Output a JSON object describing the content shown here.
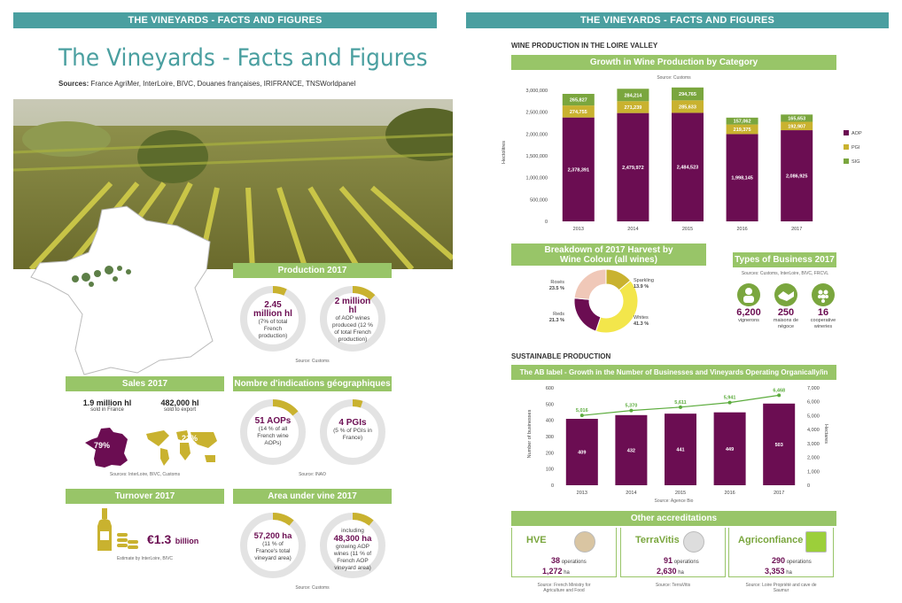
{
  "left": {
    "banner": "THE VINEYARDS - FACTS AND FIGURES",
    "title": "The Vineyards - Facts and Figures",
    "sources_label": "Sources:",
    "sources_text": "France AgriMer, InterLoire, BIVC, Douanes françaises, IRIFRANCE, TNSWorldpanel",
    "production": {
      "heading": "Production 2017",
      "ring1_big": "2.45 million hl",
      "ring1_small": "(7% of total French production)",
      "ring2_big": "2 million hl",
      "ring2_small": "of AOP wines produced (12 % of total French production)",
      "source": "Source: Customs"
    },
    "sales": {
      "heading": "Sales 2017",
      "france_value": "1.9 million hl",
      "france_text": "sold in France",
      "export_value": "482,000 hl",
      "export_text": "sold to export",
      "france_pct": "79%",
      "export_pct": "21%",
      "source": "Sources: InterLoire, BIVC, Customs"
    },
    "gi": {
      "heading": "Nombre d'indications géographiques",
      "ring1_big": "51 AOPs",
      "ring1_small": "(14 % of all French wine AOPs)",
      "ring2_big": "4 PGIs",
      "ring2_small": "(5 % of PGIs in France)",
      "source": "Source: INAO"
    },
    "turnover": {
      "heading": "Turnover 2017",
      "value": "€1.3",
      "unit": "billion",
      "source": "Estimate by InterLoire, BIVC"
    },
    "area": {
      "heading": "Area under vine 2017",
      "ring1_big": "57,200 ha",
      "ring1_small": "(11 % of France's total vineyard area)",
      "ring2_pre": "including",
      "ring2_big": "48,300 ha",
      "ring2_small": "growing AOP wines (11 % of French AOP vineyard area)",
      "source": "Source: Customs"
    }
  },
  "right": {
    "banner": "THE VINEYARDS - FACTS AND FIGURES",
    "section1": "WINE PRODUCTION IN THE LOIRE VALLEY",
    "growth_heading": "Growth in Wine Production by Category",
    "growth_source": "Source: Customs",
    "growth_ylabel": "Hectolitres",
    "colour_heading": "Breakdown of 2017 Harvest by Wine Colour (all wines)",
    "business_heading": "Types of Business 2017",
    "business_source": "Sources: Customs, InterLoire, BIVC, FRCVL",
    "business": [
      {
        "value": "6,200",
        "label": "vignerons"
      },
      {
        "value": "250",
        "label": "maisons de négoce"
      },
      {
        "value": "16",
        "label": "cooperative wineries"
      }
    ],
    "section2": "SUSTAINABLE PRODUCTION",
    "ab_heading": "The AB label - Growth in the Number of Businesses and Vineyards Operating Organically/in Conversion",
    "ab_ylabel_left": "Number of businesses",
    "ab_ylabel_right": "Hectares",
    "ab_source": "Source: Agence Bio",
    "other_heading": "Other accreditations",
    "accreditations": [
      {
        "name": "HVE",
        "ops": "38",
        "ops_label": "operations",
        "ha": "1,272",
        "ha_label": "ha",
        "source": "Source: French Ministry for Agriculture and Food"
      },
      {
        "name": "TerraVitis",
        "ops": "91",
        "ops_label": "operations",
        "ha": "2,630",
        "ha_label": "ha",
        "source": "Source: TerraVitis"
      },
      {
        "name": "Agriconfiance",
        "ops": "290",
        "ops_label": "operations",
        "ha": "3,353",
        "ha_label": "ha",
        "source": "Source: Loire Propriété and cave de Saumur"
      }
    ]
  },
  "colors": {
    "teal": "#4a9fa0",
    "green": "#98c568",
    "purple": "#6b0d52",
    "mustard": "#c9b22f",
    "rose": "#f0c8b8",
    "yellow": "#f3e64b",
    "ringgrey": "#e3e3e3"
  },
  "chart_data": [
    {
      "type": "bar",
      "title": "Growth in Wine Production by Category",
      "categories": [
        "2013",
        "2014",
        "2015",
        "2016",
        "2017"
      ],
      "series": [
        {
          "name": "AOP",
          "values": [
            2378391,
            2479972,
            2484523,
            1998145,
            2086925
          ],
          "labels": [
            "2,378,391",
            "2,479,972",
            "2,484,523",
            "1,998,145",
            "2,086,925"
          ]
        },
        {
          "name": "PGI",
          "values": [
            274755,
            271239,
            285633,
            219375,
            192907
          ],
          "labels": [
            "274,755",
            "271,239",
            "285,633",
            "219,375",
            "192,907"
          ]
        },
        {
          "name": "SIG",
          "values": [
            265827,
            284214,
            294765,
            157062,
            165653
          ],
          "labels": [
            "265,827",
            "284,214",
            "294,765",
            "157,062",
            "165,653"
          ]
        }
      ],
      "ylabel": "Hectolitres",
      "ylim": [
        0,
        3000000
      ],
      "yticks": [
        "0",
        "500,000",
        "1,000,000",
        "1,500,000",
        "2,000,000",
        "2,500,000",
        "3,000,000"
      ],
      "stacked": true,
      "legend": "right"
    },
    {
      "type": "pie",
      "title": "Breakdown of 2017 Harvest by Wine Colour (all wines)",
      "slices": [
        {
          "name": "Sparkling",
          "value": 13.9,
          "label": "13.9 %"
        },
        {
          "name": "Whites",
          "value": 41.3,
          "label": "41.3 %"
        },
        {
          "name": "Reds",
          "value": 21.3,
          "label": "21.3 %"
        },
        {
          "name": "Rosés",
          "value": 23.5,
          "label": "23.5 %"
        }
      ]
    },
    {
      "type": "bar",
      "title": "The AB label - Growth in the Number of Businesses and Vineyards Operating Organically/in Conversion",
      "categories": [
        "2013",
        "2014",
        "2015",
        "2016",
        "2017"
      ],
      "series": [
        {
          "name": "Number of businesses",
          "values": [
            409,
            432,
            441,
            449,
            503
          ]
        },
        {
          "name": "Hectares",
          "values": [
            5016,
            5370,
            5611,
            5941,
            6468
          ],
          "labels": [
            "5,016",
            "5,370",
            "5,611",
            "5,941",
            "6,468"
          ],
          "kind": "line"
        }
      ],
      "ylim_left": [
        0,
        600
      ],
      "yticks_left": [
        "0",
        "100",
        "200",
        "300",
        "400",
        "500",
        "600"
      ],
      "ylim_right": [
        0,
        7000
      ],
      "yticks_right": [
        "0",
        "1,000",
        "2,000",
        "3,000",
        "4,000",
        "5,000",
        "6,000",
        "7,000"
      ]
    }
  ]
}
